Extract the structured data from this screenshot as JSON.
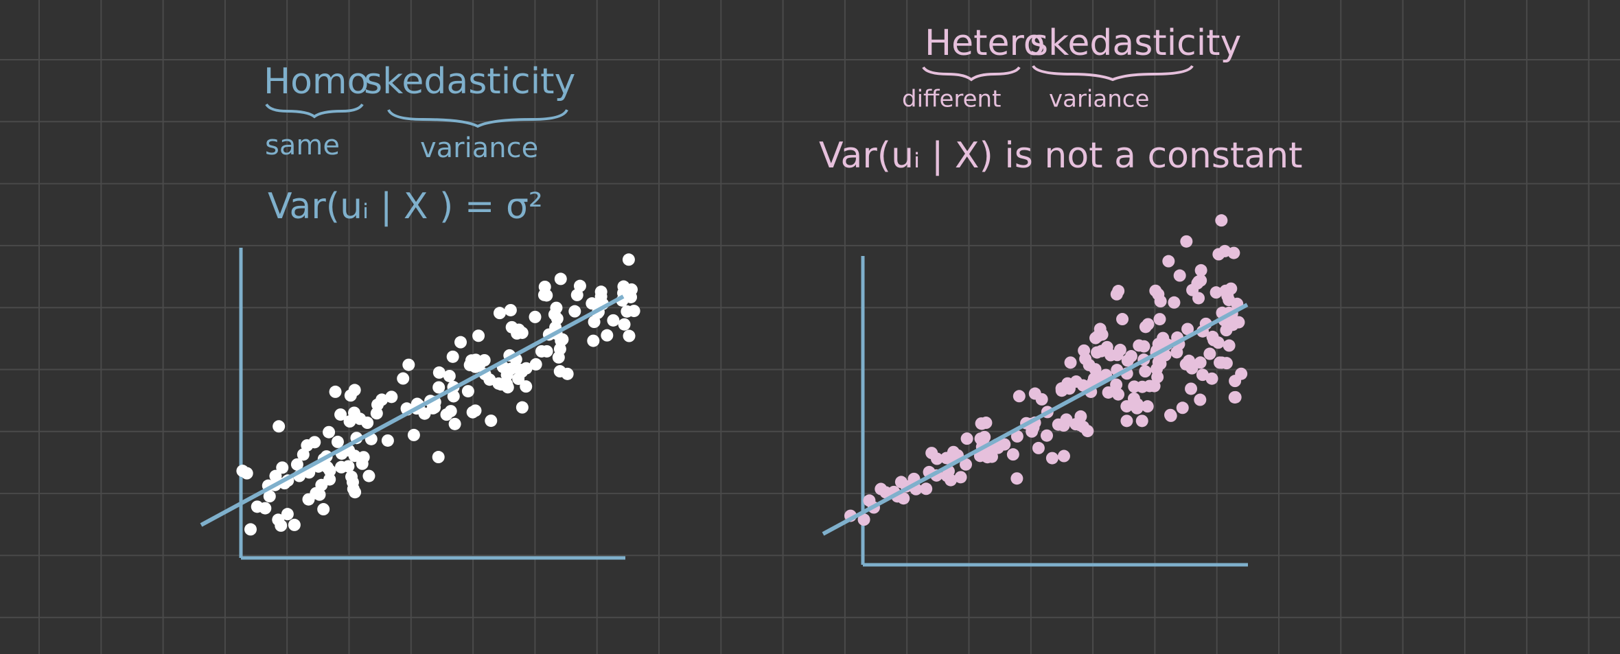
{
  "left": {
    "title": [
      "Homo",
      "skedasticity"
    ],
    "glosses": [
      "same",
      "variance"
    ],
    "formula": "Var(uᵢ | X ) = σ²"
  },
  "right": {
    "title": [
      "Hetero",
      "skedasticity"
    ],
    "glosses": [
      "different",
      "variance"
    ],
    "formula": "Var(uᵢ | X) is not a constant"
  }
}
